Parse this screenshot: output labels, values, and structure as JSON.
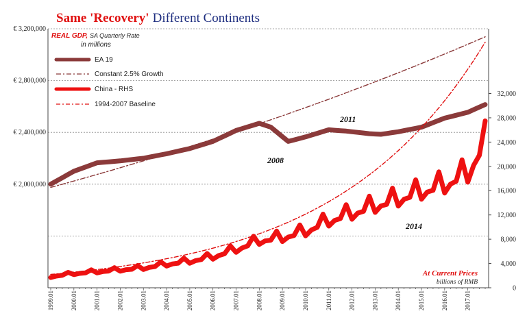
{
  "chart_data": {
    "type": "line",
    "title": {
      "part1": "Same 'Recovery'",
      "part2": "Different Continents",
      "color1": "#e01010",
      "color2": "#1f2f80"
    },
    "y_left": {
      "ylim": [
        1200000,
        3200000
      ],
      "ticks": [
        2000000,
        2400000,
        2800000,
        3200000
      ],
      "tick_labels": [
        "€ 2,000,000",
        "€ 2,400,000",
        "€ 2,800,000",
        "€ 3,200,000"
      ]
    },
    "y_right": {
      "ylim": [
        0,
        42666
      ],
      "ticks": [
        0,
        4000,
        8000,
        12000,
        16000,
        20000,
        24000,
        28000,
        32000
      ],
      "tick_labels": [
        "0",
        "4,000",
        "8,000",
        "12,000",
        "16,000",
        "20,000",
        "24,000",
        "28,000",
        "32,000"
      ]
    },
    "x": {
      "start_year": 1999,
      "start_quarter": 1,
      "end_year": 2017,
      "end_quarter": 4,
      "tick_labels": [
        "1999.Q1",
        "2000.Q1",
        "2001.Q1",
        "2002.Q1",
        "2003.Q1",
        "2004.Q1",
        "2005.Q1",
        "2006.Q1",
        "2007.Q1",
        "2008.Q1",
        "2009.Q1",
        "2010.Q1",
        "2011.Q1",
        "2012.Q1",
        "2013.Q1",
        "2014.Q1",
        "2015.Q1",
        "2016.Q1",
        "2017.Q1"
      ]
    },
    "legend": {
      "placement": "top-left",
      "heading": "REAL GDP,",
      "heading_rest": "SA Quarterly Rate",
      "subheading": "in millions",
      "items": [
        "EA 19",
        "Constant 2.5% Growth",
        "China - RHS",
        "1994-2007 Baseline"
      ]
    },
    "annotations": {
      "a2011": "2011",
      "a2008": "2008",
      "a2014": "2014",
      "current_prices": "At Current Prices",
      "rmb_units": "billions of RMB"
    },
    "grid": "horizontal",
    "series": [
      {
        "name": "EA 19",
        "axis": "left",
        "style": "thick-solid",
        "color": "#8b3a3a",
        "anchors": [
          [
            "1999.Q1",
            2000000
          ],
          [
            "2000.Q1",
            2100000
          ],
          [
            "2001.Q1",
            2165000
          ],
          [
            "2002.Q1",
            2180000
          ],
          [
            "2003.Q1",
            2200000
          ],
          [
            "2004.Q1",
            2235000
          ],
          [
            "2005.Q1",
            2275000
          ],
          [
            "2006.Q1",
            2330000
          ],
          [
            "2007.Q1",
            2415000
          ],
          [
            "2008.Q1",
            2470000
          ],
          [
            "2008.Q3",
            2440000
          ],
          [
            "2009.Q2",
            2330000
          ],
          [
            "2010.Q1",
            2365000
          ],
          [
            "2011.Q1",
            2420000
          ],
          [
            "2011.Q4",
            2410000
          ],
          [
            "2012.Q4",
            2390000
          ],
          [
            "2013.Q2",
            2385000
          ],
          [
            "2014.Q1",
            2405000
          ],
          [
            "2015.Q1",
            2440000
          ],
          [
            "2016.Q1",
            2510000
          ],
          [
            "2017.Q1",
            2555000
          ],
          [
            "2017.Q4",
            2615000
          ]
        ]
      },
      {
        "name": "Constant 2.5% Growth",
        "axis": "left",
        "style": "dash-dot",
        "color": "#8b3a3a",
        "start_value": 1975000,
        "annual_growth": 0.025
      },
      {
        "name": "China - RHS",
        "axis": "right",
        "style": "thick-solid",
        "color": "#ee1111",
        "anchors": [
          [
            "1999.Q1",
            1800
          ],
          [
            "2000.Q1",
            2300
          ],
          [
            "2001.Q1",
            2600
          ],
          [
            "2002.Q1",
            2900
          ],
          [
            "2003.Q1",
            3200
          ],
          [
            "2004.Q1",
            3800
          ],
          [
            "2005.Q1",
            4300
          ],
          [
            "2006.Q1",
            5000
          ],
          [
            "2007.Q1",
            6200
          ],
          [
            "2008.Q1",
            7600
          ],
          [
            "2009.Q1",
            8100
          ],
          [
            "2010.Q1",
            9100
          ],
          [
            "2011.Q1",
            10800
          ],
          [
            "2012.Q1",
            12000
          ],
          [
            "2013.Q1",
            13200
          ],
          [
            "2014.Q1",
            14300
          ],
          [
            "2015.Q1",
            15500
          ],
          [
            "2016.Q1",
            16600
          ],
          [
            "2017.Q1",
            18500
          ],
          [
            "2017.Q4",
            23500
          ]
        ],
        "seasonal_q4_bump": 0.17
      },
      {
        "name": "1994-2007 Baseline",
        "axis": "right",
        "style": "dashed",
        "color": "#e01010",
        "start_value": 2200,
        "annual_growth": 0.168
      }
    ]
  }
}
